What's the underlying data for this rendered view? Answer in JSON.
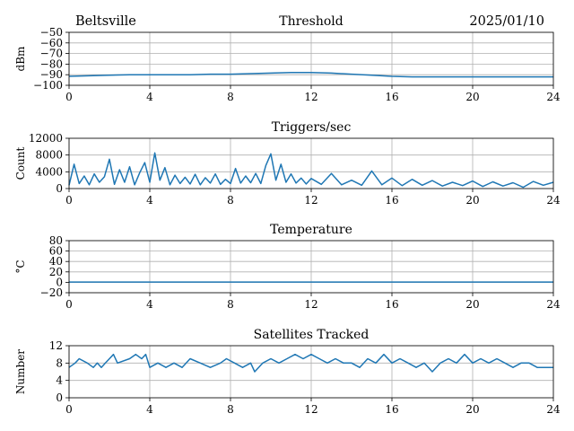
{
  "header": {
    "station": "Beltsville",
    "date": "2025/01/10"
  },
  "chart_data": [
    {
      "type": "line",
      "title": "Threshold",
      "ylabel": "dBm",
      "xlabel": "",
      "xlim": [
        0,
        24
      ],
      "ylim": [
        -100,
        -50
      ],
      "xticks": [
        "0",
        "4",
        "8",
        "12",
        "16",
        "20",
        "24"
      ],
      "yticks": [
        "−100",
        "−90",
        "−80",
        "−70",
        "−60",
        "−50"
      ],
      "grid": true,
      "series": [
        {
          "x": [
            0,
            1,
            2,
            3,
            4,
            5,
            6,
            7,
            8,
            9,
            10,
            11,
            12,
            13,
            14,
            15,
            16,
            17,
            18,
            19,
            20,
            21,
            22,
            23,
            24
          ],
          "values": [
            -91.5,
            -91,
            -90.5,
            -90,
            -90,
            -90,
            -90,
            -89.5,
            -89.5,
            -89,
            -88.5,
            -88,
            -88,
            -88.5,
            -89.5,
            -90.5,
            -91.5,
            -92,
            -92,
            -92,
            -92,
            -92,
            -92,
            -92,
            -92
          ]
        }
      ]
    },
    {
      "type": "line",
      "title": "Triggers/sec",
      "ylabel": "Count",
      "xlabel": "",
      "xlim": [
        0,
        24
      ],
      "ylim": [
        0,
        12000
      ],
      "xticks": [
        "0",
        "4",
        "8",
        "12",
        "16",
        "20",
        "24"
      ],
      "yticks": [
        "0",
        "4000",
        "8000",
        "12000"
      ],
      "grid": true,
      "series": [
        {
          "x": [
            0,
            0.25,
            0.5,
            0.75,
            1,
            1.25,
            1.5,
            1.75,
            2,
            2.25,
            2.5,
            2.75,
            3,
            3.25,
            3.5,
            3.75,
            4,
            4.25,
            4.5,
            4.75,
            5,
            5.25,
            5.5,
            5.75,
            6,
            6.25,
            6.5,
            6.75,
            7,
            7.25,
            7.5,
            7.75,
            8,
            8.25,
            8.5,
            8.75,
            9,
            9.25,
            9.5,
            9.75,
            10,
            10.25,
            10.5,
            10.75,
            11,
            11.25,
            11.5,
            11.75,
            12,
            12.5,
            13,
            13.5,
            14,
            14.5,
            15,
            15.5,
            16,
            16.5,
            17,
            17.5,
            18,
            18.5,
            19,
            19.5,
            20,
            20.5,
            21,
            21.5,
            22,
            22.5,
            23,
            23.5,
            24
          ],
          "values": [
            800,
            5800,
            1200,
            3000,
            900,
            3500,
            1500,
            2800,
            7000,
            1000,
            4500,
            1500,
            5200,
            900,
            3800,
            6200,
            1500,
            8500,
            2000,
            5000,
            900,
            3200,
            1200,
            2700,
            1100,
            3400,
            900,
            2600,
            1300,
            3500,
            1000,
            2200,
            1200,
            4800,
            1300,
            3000,
            1400,
            3600,
            1200,
            5500,
            8300,
            2000,
            5800,
            1500,
            3500,
            1300,
            2500,
            1100,
            2400,
            1000,
            3600,
            900,
            2000,
            800,
            4200,
            900,
            2500,
            700,
            2200,
            800,
            1900,
            600,
            1500,
            700,
            1800,
            500,
            1600,
            600,
            1400,
            300,
            1700,
            800,
            1500
          ]
        }
      ]
    },
    {
      "type": "line",
      "title": "Temperature",
      "ylabel": "°C",
      "xlabel": "",
      "xlim": [
        0,
        24
      ],
      "ylim": [
        -20,
        80
      ],
      "xticks": [
        "0",
        "4",
        "8",
        "12",
        "16",
        "20",
        "24"
      ],
      "yticks": [
        "−20",
        "0",
        "20",
        "40",
        "60",
        "80"
      ],
      "grid": true,
      "series": [
        {
          "x": [
            0,
            24
          ],
          "values": [
            0.5,
            0.5
          ]
        }
      ]
    },
    {
      "type": "line",
      "title": "Satellites Tracked",
      "ylabel": "Number",
      "xlabel": "",
      "xlim": [
        0,
        24
      ],
      "ylim": [
        0,
        12
      ],
      "xticks": [
        "0",
        "4",
        "8",
        "12",
        "16",
        "20",
        "24"
      ],
      "yticks": [
        "0",
        "4",
        "8",
        "12"
      ],
      "grid": true,
      "series": [
        {
          "x": [
            0,
            0.3,
            0.5,
            0.9,
            1.2,
            1.4,
            1.6,
            1.8,
            2.0,
            2.2,
            2.4,
            3.0,
            3.3,
            3.6,
            3.8,
            4.0,
            4.4,
            4.8,
            5.2,
            5.6,
            6.0,
            6.5,
            7.0,
            7.5,
            7.8,
            8.2,
            8.6,
            9.0,
            9.2,
            9.6,
            10.0,
            10.4,
            10.8,
            11.2,
            11.6,
            12.0,
            12.4,
            12.8,
            13.2,
            13.6,
            14.0,
            14.4,
            14.8,
            15.2,
            15.6,
            16.0,
            16.4,
            16.8,
            17.2,
            17.6,
            18.0,
            18.4,
            18.8,
            19.2,
            19.6,
            20.0,
            20.4,
            20.8,
            21.2,
            21.6,
            22.0,
            22.4,
            22.8,
            23.2,
            24
          ],
          "values": [
            7,
            8,
            9,
            8,
            7,
            8,
            7,
            8,
            9,
            10,
            8,
            9,
            10,
            9,
            10,
            7,
            8,
            7,
            8,
            7,
            9,
            8,
            7,
            8,
            9,
            8,
            7,
            8,
            6,
            8,
            9,
            8,
            9,
            10,
            9,
            10,
            9,
            8,
            9,
            8,
            8,
            7,
            9,
            8,
            10,
            8,
            9,
            8,
            7,
            8,
            6,
            8,
            9,
            8,
            10,
            8,
            9,
            8,
            9,
            8,
            7,
            8,
            8,
            7,
            7
          ]
        }
      ]
    }
  ]
}
